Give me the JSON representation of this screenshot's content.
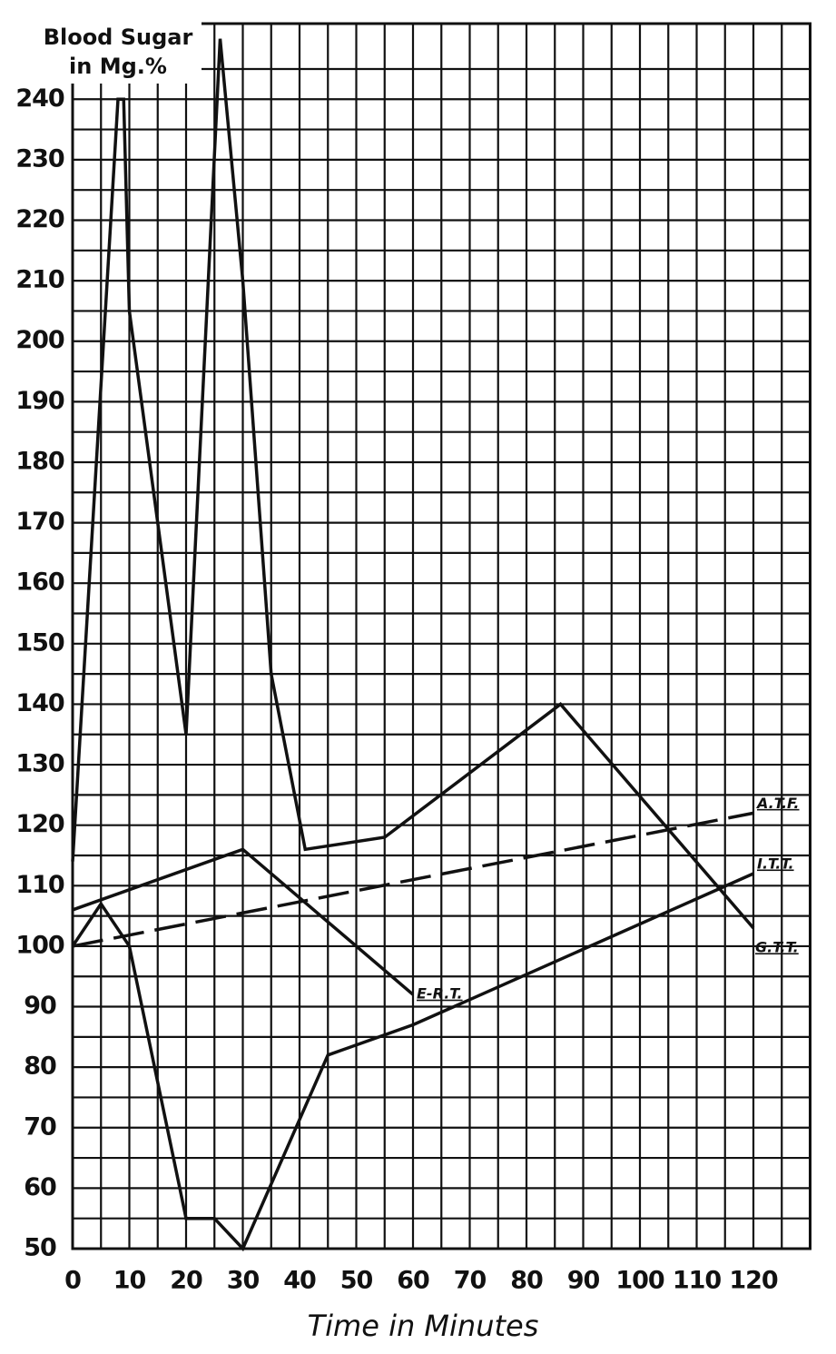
{
  "chart_data": {
    "type": "line",
    "y_label": [
      "Blood Sugar",
      "in Mg.%"
    ],
    "x_label": "Time in Minutes",
    "xlim": [
      0,
      130
    ],
    "ylim": [
      50,
      252.5
    ],
    "xticks": [
      0,
      10,
      20,
      30,
      40,
      50,
      60,
      70,
      80,
      90,
      100,
      110,
      120
    ],
    "yticks": [
      50,
      60,
      70,
      80,
      90,
      100,
      110,
      120,
      130,
      140,
      150,
      160,
      170,
      180,
      190,
      200,
      210,
      220,
      230,
      240
    ],
    "grid": true,
    "series": [
      {
        "name": "G.T.T.",
        "color": "#111111",
        "dashed": false,
        "x": [
          0,
          8,
          9,
          10,
          20,
          26,
          30,
          35,
          41,
          55,
          86,
          120
        ],
        "values": [
          114,
          240,
          240,
          205,
          135,
          250,
          210,
          145,
          116,
          118,
          140,
          103
        ]
      },
      {
        "name": "A.T.F.",
        "color": "#111111",
        "dashed": true,
        "x": [
          0,
          120
        ],
        "values": [
          100,
          122
        ]
      },
      {
        "name": "I.T.T.",
        "color": "#111111",
        "dashed": false,
        "x": [
          0,
          5,
          10,
          20,
          25,
          30,
          45,
          60,
          120
        ],
        "values": [
          100,
          107,
          100,
          55,
          55,
          50,
          82,
          87,
          112
        ]
      },
      {
        "name": "E-R.T.",
        "color": "#111111",
        "dashed": false,
        "x": [
          0,
          30,
          60
        ],
        "values": [
          106,
          116,
          92
        ]
      }
    ]
  }
}
